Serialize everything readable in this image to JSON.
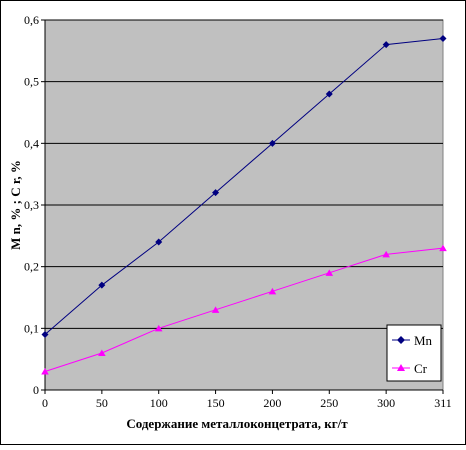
{
  "chart_data": {
    "type": "line",
    "title": "",
    "xlabel": "Содержание металлоконцетрата, кг/т",
    "ylabel": "M n, % ; C r, %",
    "categories": [
      "0",
      "50",
      "100",
      "150",
      "200",
      "250",
      "300",
      "311"
    ],
    "ylim": [
      0,
      0.6
    ],
    "yticks": [
      "0",
      "0,1",
      "0,2",
      "0,3",
      "0,4",
      "0,5",
      "0,6"
    ],
    "grid": true,
    "legend_position": "bottom-right",
    "plot_background": "#c0c0c0",
    "series": [
      {
        "name": "Mn",
        "color": "#000080",
        "marker": "diamond",
        "values": [
          0.09,
          0.17,
          0.24,
          0.32,
          0.4,
          0.48,
          0.56,
          0.57
        ]
      },
      {
        "name": "Cr",
        "color": "#ff00ff",
        "marker": "triangle",
        "values": [
          0.03,
          0.06,
          0.1,
          0.13,
          0.16,
          0.19,
          0.22,
          0.23
        ]
      }
    ]
  }
}
